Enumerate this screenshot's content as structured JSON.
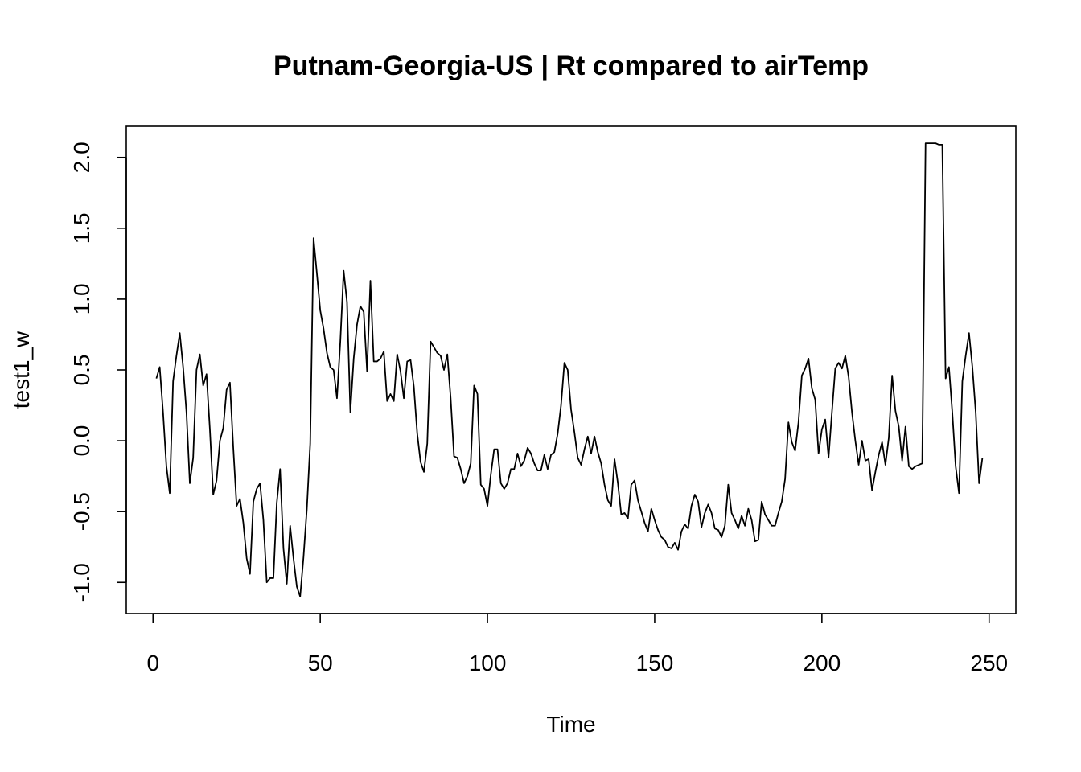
{
  "chart_data": {
    "type": "line",
    "title": "Putnam-Georgia-US | Rt compared to airTemp",
    "xlabel": "Time",
    "ylabel": "test1_w",
    "xlim": [
      -8,
      258
    ],
    "ylim": [
      -1.22,
      2.22
    ],
    "x_ticks": [
      0,
      50,
      100,
      150,
      200,
      250
    ],
    "y_ticks": [
      -1.0,
      -0.5,
      0.0,
      0.5,
      1.0,
      1.5,
      2.0
    ],
    "x_tick_labels": [
      "0",
      "50",
      "100",
      "150",
      "200",
      "250"
    ],
    "y_tick_labels": [
      "-1.0",
      "-0.5",
      "0.0",
      "0.5",
      "1.0",
      "1.5",
      "2.0"
    ],
    "grid": false,
    "series": [
      {
        "x_start": 1,
        "x_step": 1,
        "values": [
          0.44,
          0.52,
          0.2,
          -0.18,
          -0.37,
          0.42,
          0.6,
          0.76,
          0.52,
          0.2,
          -0.3,
          -0.12,
          0.5,
          0.61,
          0.39,
          0.47,
          0.08,
          -0.38,
          -0.28,
          0.0,
          0.09,
          0.36,
          0.41,
          -0.05,
          -0.46,
          -0.41,
          -0.58,
          -0.83,
          -0.94,
          -0.43,
          -0.34,
          -0.3,
          -0.56,
          -1.0,
          -0.97,
          -0.97,
          -0.44,
          -0.2,
          -0.76,
          -1.01,
          -0.6,
          -0.83,
          -1.03,
          -1.1,
          -0.82,
          -0.48,
          -0.02,
          1.43,
          1.18,
          0.92,
          0.79,
          0.62,
          0.52,
          0.5,
          0.3,
          0.7,
          1.2,
          0.98,
          0.2,
          0.58,
          0.82,
          0.95,
          0.91,
          0.49,
          1.13,
          0.56,
          0.56,
          0.58,
          0.63,
          0.28,
          0.33,
          0.28,
          0.61,
          0.49,
          0.3,
          0.56,
          0.57,
          0.38,
          0.05,
          -0.15,
          -0.22,
          -0.02,
          0.7,
          0.66,
          0.62,
          0.6,
          0.5,
          0.61,
          0.3,
          -0.11,
          -0.12,
          -0.2,
          -0.3,
          -0.25,
          -0.16,
          0.39,
          0.33,
          -0.31,
          -0.34,
          -0.46,
          -0.24,
          -0.06,
          -0.06,
          -0.3,
          -0.34,
          -0.3,
          -0.2,
          -0.2,
          -0.09,
          -0.18,
          -0.14,
          -0.05,
          -0.09,
          -0.16,
          -0.21,
          -0.21,
          -0.1,
          -0.2,
          -0.1,
          -0.08,
          0.05,
          0.25,
          0.55,
          0.5,
          0.22,
          0.06,
          -0.12,
          -0.17,
          -0.06,
          0.03,
          -0.09,
          0.03,
          -0.08,
          -0.16,
          -0.31,
          -0.42,
          -0.46,
          -0.13,
          -0.3,
          -0.52,
          -0.51,
          -0.55,
          -0.31,
          -0.28,
          -0.42,
          -0.5,
          -0.58,
          -0.64,
          -0.48,
          -0.56,
          -0.63,
          -0.68,
          -0.7,
          -0.75,
          -0.76,
          -0.72,
          -0.77,
          -0.64,
          -0.59,
          -0.62,
          -0.46,
          -0.38,
          -0.43,
          -0.61,
          -0.51,
          -0.45,
          -0.51,
          -0.62,
          -0.63,
          -0.68,
          -0.6,
          -0.31,
          -0.51,
          -0.56,
          -0.62,
          -0.53,
          -0.6,
          -0.48,
          -0.56,
          -0.71,
          -0.7,
          -0.43,
          -0.52,
          -0.56,
          -0.6,
          -0.6,
          -0.51,
          -0.43,
          -0.27,
          0.13,
          -0.01,
          -0.07,
          0.13,
          0.46,
          0.51,
          0.58,
          0.37,
          0.29,
          -0.09,
          0.08,
          0.15,
          -0.12,
          0.2,
          0.51,
          0.55,
          0.51,
          0.6,
          0.45,
          0.2,
          0.0,
          -0.17,
          0.0,
          -0.14,
          -0.13,
          -0.35,
          -0.22,
          -0.1,
          -0.01,
          -0.17,
          0.02,
          0.46,
          0.21,
          0.1,
          -0.14,
          0.1,
          -0.18,
          -0.2,
          -0.18,
          -0.17,
          -0.16,
          2.1,
          2.1,
          2.1,
          2.1,
          2.09,
          2.09,
          0.44,
          0.52,
          0.2,
          -0.18,
          -0.37,
          0.42,
          0.6,
          0.76,
          0.52,
          0.2,
          -0.3,
          -0.12
        ]
      }
    ]
  }
}
